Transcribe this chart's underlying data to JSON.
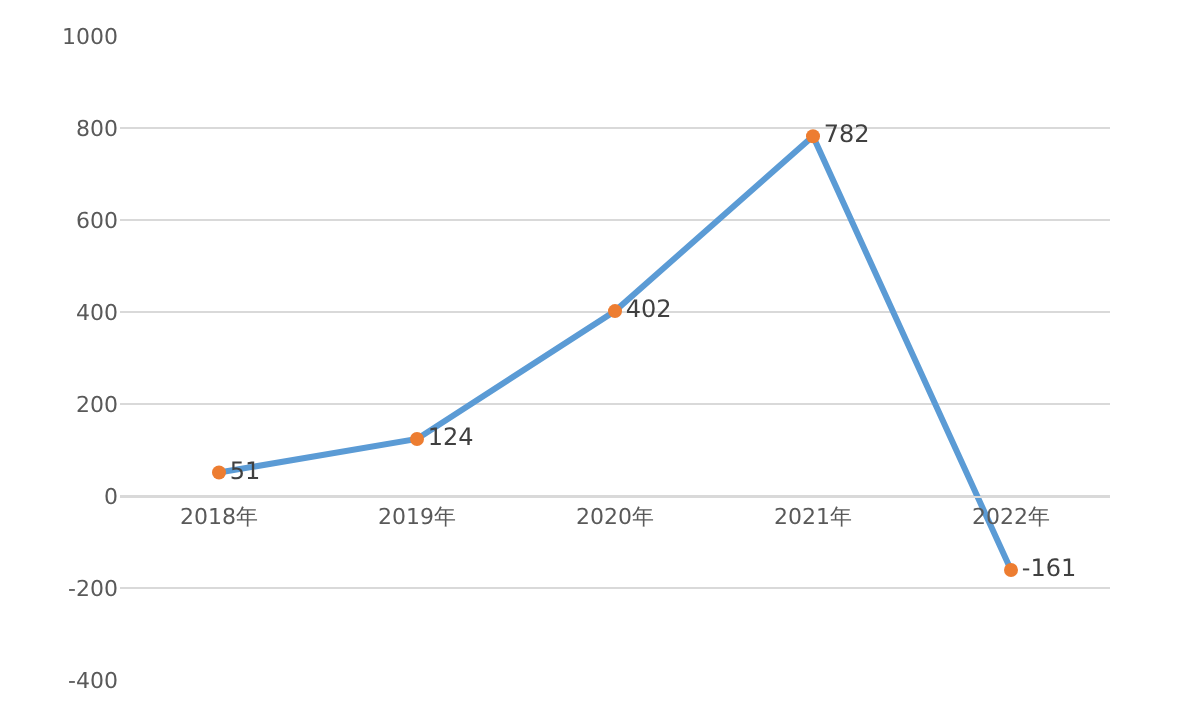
{
  "chart_data": {
    "type": "line",
    "categories": [
      "2018年",
      "2019年",
      "2020年",
      "2021年",
      "2022年"
    ],
    "series": [
      {
        "color": "#5b9bd5",
        "colors": [
          "#ed7d31",
          "#ed7d31",
          "#ed7d31",
          "#ed7d31",
          "#ed7d31"
        ],
        "values": [
          51,
          124,
          402,
          782,
          -161
        ]
      }
    ],
    "ylim": [
      -400,
      1000
    ],
    "yticks": [
      -400,
      -200,
      0,
      200,
      400,
      600,
      800,
      1000
    ],
    "grid": "y",
    "marker": "circle",
    "line_style": "solid",
    "data_labels": true
  }
}
